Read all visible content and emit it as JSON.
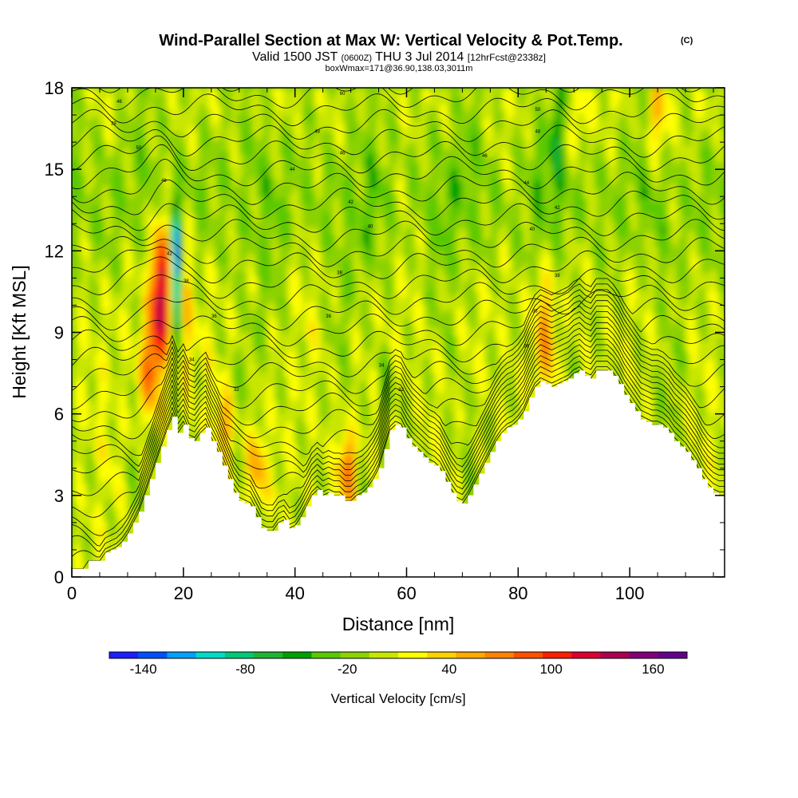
{
  "chart_data": {
    "type": "heatmap",
    "title": "Wind-Parallel Section at Max W: Vertical Velocity & Pot.Temp.",
    "title_mark": "(C)",
    "subtitle_parts": {
      "valid": "Valid 1500 JST",
      "utc": "(0600Z)",
      "date": "THU 3 Jul 2014",
      "fcst": "[12hrFcst@2338z]"
    },
    "subtitle2": "boxWmax=171@36.90,138.03,3011m",
    "xlabel": "Distance [nm]",
    "ylabel": "Height [Kft MSL]",
    "xlim": [
      0,
      117
    ],
    "ylim": [
      0,
      18
    ],
    "x_ticks": [
      0,
      20,
      40,
      60,
      80,
      100
    ],
    "y_ticks": [
      0,
      3,
      6,
      9,
      12,
      15,
      18
    ],
    "colorbar": {
      "label": "Vertical Velocity [cm/s]",
      "tick_labels": [
        "-140",
        "-80",
        "-20",
        "40",
        "100",
        "160"
      ],
      "tick_positions": [
        -140,
        -80,
        -20,
        40,
        100,
        160
      ],
      "min": -160,
      "max": 180,
      "colors": [
        "#1e1eff",
        "#0050ff",
        "#00a0ff",
        "#00dcc8",
        "#00c878",
        "#1eb432",
        "#00a000",
        "#5ac800",
        "#8cd200",
        "#c8e600",
        "#ffff00",
        "#ffd200",
        "#ffaa00",
        "#ff8200",
        "#ff5000",
        "#ff1e00",
        "#dc0032",
        "#aa0050",
        "#820078",
        "#64008c"
      ]
    },
    "terrain": [
      [
        0,
        0.3
      ],
      [
        2,
        0.3
      ],
      [
        3,
        0.6
      ],
      [
        5,
        0.6
      ],
      [
        6,
        0.9
      ],
      [
        7,
        1.0
      ],
      [
        8,
        1.1
      ],
      [
        9,
        1.3
      ],
      [
        10,
        1.6
      ],
      [
        11,
        2.0
      ],
      [
        12,
        2.4
      ],
      [
        13,
        3.0
      ],
      [
        14,
        3.6
      ],
      [
        15,
        4.2
      ],
      [
        16,
        4.8
      ],
      [
        17,
        5.4
      ],
      [
        18,
        5.9
      ],
      [
        19,
        5.3
      ],
      [
        20,
        5.6
      ],
      [
        21,
        5.1
      ],
      [
        22,
        5.0
      ],
      [
        23,
        5.3
      ],
      [
        24,
        5.5
      ],
      [
        25,
        5.0
      ],
      [
        26,
        4.6
      ],
      [
        27,
        4.1
      ],
      [
        28,
        3.6
      ],
      [
        29,
        3.1
      ],
      [
        30,
        2.8
      ],
      [
        31,
        2.7
      ],
      [
        32,
        2.6
      ],
      [
        33,
        2.2
      ],
      [
        34,
        1.8
      ],
      [
        35,
        1.7
      ],
      [
        36,
        1.7
      ],
      [
        37,
        2.0
      ],
      [
        38,
        2.1
      ],
      [
        39,
        1.8
      ],
      [
        40,
        1.9
      ],
      [
        41,
        2.2
      ],
      [
        42,
        2.6
      ],
      [
        43,
        3.0
      ],
      [
        44,
        3.2
      ],
      [
        45,
        3.0
      ],
      [
        46,
        3.1
      ],
      [
        47,
        3.0
      ],
      [
        48,
        3.0
      ],
      [
        49,
        2.8
      ],
      [
        50,
        2.8
      ],
      [
        51,
        3.0
      ],
      [
        52,
        3.1
      ],
      [
        53,
        3.3
      ],
      [
        54,
        3.6
      ],
      [
        55,
        4.0
      ],
      [
        56,
        4.7
      ],
      [
        57,
        5.4
      ],
      [
        58,
        5.6
      ],
      [
        59,
        5.5
      ],
      [
        60,
        5.1
      ],
      [
        61,
        4.8
      ],
      [
        62,
        4.6
      ],
      [
        63,
        4.4
      ],
      [
        64,
        4.2
      ],
      [
        65,
        4.1
      ],
      [
        66,
        3.9
      ],
      [
        67,
        3.5
      ],
      [
        68,
        3.1
      ],
      [
        69,
        2.8
      ],
      [
        70,
        2.7
      ],
      [
        71,
        3.0
      ],
      [
        72,
        3.4
      ],
      [
        73,
        3.8
      ],
      [
        74,
        4.2
      ],
      [
        75,
        4.6
      ],
      [
        76,
        5.0
      ],
      [
        77,
        5.3
      ],
      [
        78,
        5.5
      ],
      [
        79,
        5.6
      ],
      [
        80,
        5.8
      ],
      [
        81,
        6.1
      ],
      [
        82,
        6.6
      ],
      [
        83,
        7.0
      ],
      [
        84,
        7.2
      ],
      [
        85,
        7.1
      ],
      [
        86,
        7.0
      ],
      [
        87,
        7.1
      ],
      [
        88,
        7.2
      ],
      [
        89,
        7.3
      ],
      [
        90,
        7.5
      ],
      [
        91,
        7.6
      ],
      [
        92,
        7.4
      ],
      [
        93,
        7.3
      ],
      [
        94,
        7.6
      ],
      [
        95,
        7.6
      ],
      [
        96,
        7.6
      ],
      [
        97,
        7.4
      ],
      [
        98,
        7.1
      ],
      [
        99,
        6.7
      ],
      [
        100,
        6.4
      ],
      [
        101,
        6.1
      ],
      [
        102,
        5.8
      ],
      [
        103,
        5.7
      ],
      [
        104,
        5.6
      ],
      [
        105,
        5.6
      ],
      [
        106,
        5.5
      ],
      [
        107,
        5.3
      ],
      [
        108,
        5.0
      ],
      [
        109,
        4.8
      ],
      [
        110,
        4.6
      ],
      [
        111,
        4.3
      ],
      [
        112,
        4.0
      ],
      [
        113,
        3.6
      ],
      [
        114,
        3.3
      ],
      [
        115,
        3.1
      ],
      [
        116,
        3.0
      ],
      [
        117,
        3.0
      ]
    ],
    "contour_labels": [
      {
        "x": 8.5,
        "y": 17.5,
        "text": "46"
      },
      {
        "x": 7.5,
        "y": 16.7,
        "text": "38"
      },
      {
        "x": 12,
        "y": 15.8,
        "text": "50"
      },
      {
        "x": 16.5,
        "y": 14.6,
        "text": "46"
      },
      {
        "x": 17.5,
        "y": 11.9,
        "text": "42"
      },
      {
        "x": 20.5,
        "y": 10.9,
        "text": "38"
      },
      {
        "x": 25.5,
        "y": 9.6,
        "text": "36"
      },
      {
        "x": 21.5,
        "y": 8.0,
        "text": "34"
      },
      {
        "x": 29.5,
        "y": 6.9,
        "text": "32"
      },
      {
        "x": 48.5,
        "y": 17.8,
        "text": "60"
      },
      {
        "x": 44,
        "y": 16.4,
        "text": "48"
      },
      {
        "x": 48.5,
        "y": 15.6,
        "text": "46"
      },
      {
        "x": 39.5,
        "y": 15.0,
        "text": "44"
      },
      {
        "x": 50,
        "y": 13.8,
        "text": "42"
      },
      {
        "x": 53.5,
        "y": 12.9,
        "text": "40"
      },
      {
        "x": 48,
        "y": 11.2,
        "text": "38"
      },
      {
        "x": 46,
        "y": 9.6,
        "text": "36"
      },
      {
        "x": 55.5,
        "y": 7.8,
        "text": "34"
      },
      {
        "x": 59,
        "y": 6.9,
        "text": "32"
      },
      {
        "x": 83.5,
        "y": 17.2,
        "text": "50"
      },
      {
        "x": 83.5,
        "y": 16.4,
        "text": "48"
      },
      {
        "x": 74,
        "y": 15.5,
        "text": "46"
      },
      {
        "x": 81.5,
        "y": 14.5,
        "text": "44"
      },
      {
        "x": 87,
        "y": 13.6,
        "text": "42"
      },
      {
        "x": 82.5,
        "y": 12.8,
        "text": "40"
      },
      {
        "x": 87,
        "y": 11.1,
        "text": "38"
      },
      {
        "x": 83,
        "y": 9.8,
        "text": "36"
      },
      {
        "x": 81.5,
        "y": 8.5,
        "text": "34"
      }
    ]
  }
}
